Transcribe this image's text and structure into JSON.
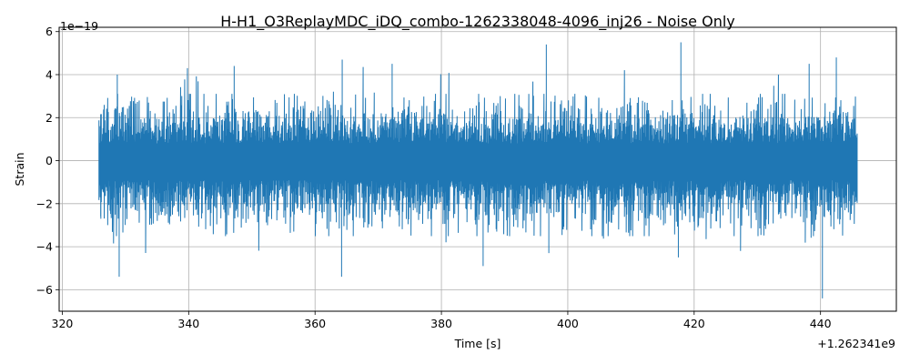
{
  "chart_data": {
    "type": "line",
    "title": "H-H1_O3ReplayMDC_iDQ_combo-1262338048-4096_inj26 - Noise Only",
    "xlabel": "Time [s]",
    "ylabel": "Strain",
    "x_offset_label": "+1.262341e9",
    "y_scale_label": "1e−19",
    "xlim": [
      319.5,
      452
    ],
    "ylim": [
      -7.0,
      6.2
    ],
    "x_ticks": [
      320,
      340,
      360,
      380,
      400,
      420,
      440
    ],
    "y_ticks": [
      -6,
      -4,
      -2,
      0,
      2,
      4,
      6
    ],
    "x_tick_labels": [
      "320",
      "340",
      "360",
      "380",
      "400",
      "420",
      "440"
    ],
    "y_tick_labels": [
      "−6",
      "−4",
      "−2",
      "0",
      "2",
      "4",
      "6"
    ],
    "grid": true,
    "line_color": "#1f77b4",
    "series": [
      {
        "x_range": [
          325.8,
          445.8
        ],
        "envelope_y": [
          -2.6,
          2.3
        ],
        "extreme_peaks": [
          {
            "x": 326.1,
            "y": -2.7
          },
          {
            "x": 328.7,
            "y": 4.0
          },
          {
            "x": 329.0,
            "y": -5.4
          },
          {
            "x": 339.8,
            "y": 4.3
          },
          {
            "x": 347.2,
            "y": 4.4
          },
          {
            "x": 364.3,
            "y": 4.7
          },
          {
            "x": 364.2,
            "y": -5.4
          },
          {
            "x": 372.2,
            "y": 4.5
          },
          {
            "x": 386.6,
            "y": -4.9
          },
          {
            "x": 396.6,
            "y": 5.4
          },
          {
            "x": 397.0,
            "y": -4.3
          },
          {
            "x": 417.9,
            "y": 5.5
          },
          {
            "x": 417.5,
            "y": -4.5
          },
          {
            "x": 440.3,
            "y": -6.4
          },
          {
            "x": 442.5,
            "y": 4.8
          },
          {
            "x": 438.2,
            "y": 4.5
          }
        ]
      }
    ]
  }
}
